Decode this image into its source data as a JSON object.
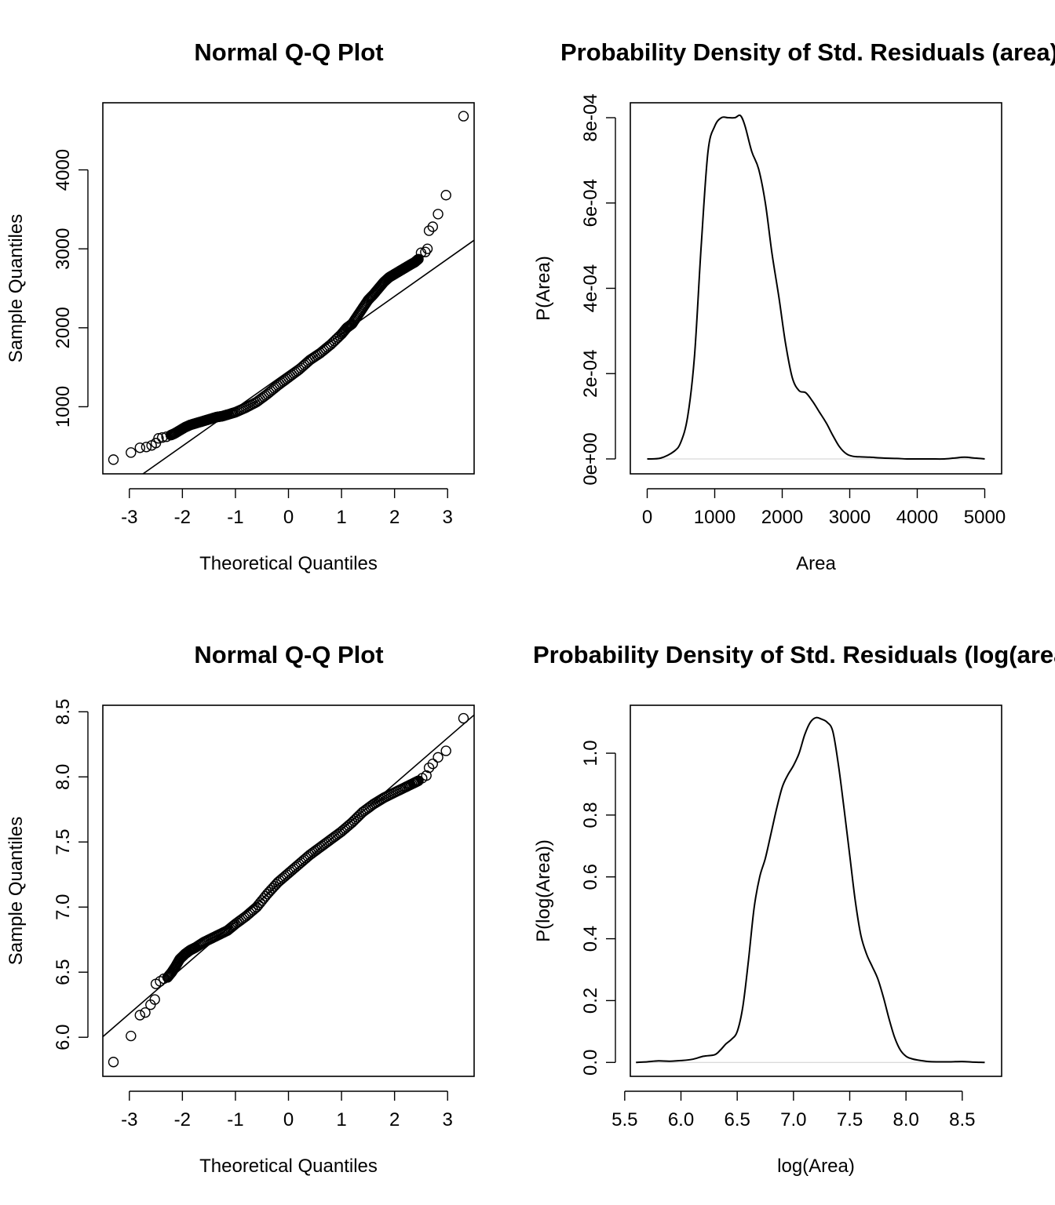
{
  "chart_data": [
    {
      "type": "scatter",
      "title": "Normal Q-Q Plot",
      "xlabel": "Theoretical Quantiles",
      "ylabel": "Sample Quantiles",
      "xlim": [
        -3.5,
        3.5
      ],
      "ylim": [
        150,
        4850
      ],
      "xticks": [
        "-3",
        "-2",
        "-1",
        "0",
        "1",
        "2",
        "3"
      ],
      "yticks": [
        "1000",
        "2000",
        "3000",
        "4000"
      ],
      "grid": false,
      "reference_line": {
        "intercept": 1450,
        "slope": 474
      },
      "points": [
        [
          -3.3,
          330
        ],
        [
          -2.97,
          420
        ],
        [
          -2.8,
          480
        ],
        [
          -2.68,
          490
        ],
        [
          -2.58,
          510
        ],
        [
          -2.5,
          540
        ],
        [
          -2.45,
          600
        ],
        [
          -2.38,
          610
        ],
        [
          -2.3,
          620
        ],
        [
          -2.22,
          640
        ],
        [
          -2.15,
          660
        ],
        [
          -2.05,
          700
        ],
        [
          -1.95,
          740
        ],
        [
          -1.85,
          770
        ],
        [
          -1.75,
          790
        ],
        [
          -1.65,
          810
        ],
        [
          -1.55,
          830
        ],
        [
          -1.45,
          850
        ],
        [
          -1.35,
          870
        ],
        [
          -1.25,
          880
        ],
        [
          -1.15,
          900
        ],
        [
          -1.0,
          930
        ],
        [
          -0.8,
          990
        ],
        [
          -0.6,
          1060
        ],
        [
          -0.4,
          1160
        ],
        [
          -0.2,
          1270
        ],
        [
          0.0,
          1370
        ],
        [
          0.2,
          1470
        ],
        [
          0.4,
          1590
        ],
        [
          0.6,
          1680
        ],
        [
          0.8,
          1790
        ],
        [
          1.0,
          1920
        ],
        [
          1.1,
          2000
        ],
        [
          1.2,
          2050
        ],
        [
          1.3,
          2150
        ],
        [
          1.4,
          2250
        ],
        [
          1.5,
          2350
        ],
        [
          1.6,
          2420
        ],
        [
          1.7,
          2500
        ],
        [
          1.8,
          2580
        ],
        [
          1.9,
          2640
        ],
        [
          2.0,
          2680
        ],
        [
          2.1,
          2720
        ],
        [
          2.2,
          2760
        ],
        [
          2.3,
          2800
        ],
        [
          2.38,
          2830
        ],
        [
          2.45,
          2870
        ],
        [
          2.5,
          2950
        ],
        [
          2.58,
          2960
        ],
        [
          2.62,
          3000
        ],
        [
          2.65,
          3230
        ],
        [
          2.72,
          3280
        ],
        [
          2.82,
          3440
        ],
        [
          2.97,
          3680
        ],
        [
          3.3,
          4680
        ]
      ]
    },
    {
      "type": "line",
      "title": "Probability Density of Std. Residuals (area)",
      "xlabel": "Area",
      "ylabel": "P(Area)",
      "xlim": [
        -250,
        5250
      ],
      "ylim": [
        -3.5e-05,
        0.000835
      ],
      "xticks": [
        "0",
        "1000",
        "2000",
        "3000",
        "4000",
        "5000"
      ],
      "yticks": [
        "0e+00",
        "2e-04",
        "4e-04",
        "6e-04",
        "8e-04"
      ],
      "grid": false,
      "x": [
        0,
        200,
        400,
        500,
        600,
        700,
        800,
        900,
        1000,
        1100,
        1200,
        1300,
        1380,
        1450,
        1550,
        1650,
        1750,
        1850,
        1950,
        2050,
        2150,
        2250,
        2350,
        2450,
        2550,
        2650,
        2750,
        2850,
        2950,
        3050,
        3150,
        3300,
        3500,
        3700,
        3850,
        4000,
        4200,
        4400,
        4550,
        4700,
        4850,
        5000
      ],
      "y": [
        0,
        2e-06,
        1.8e-05,
        4e-05,
        0.0001,
        0.00024,
        0.0005,
        0.00072,
        0.00078,
        0.0008,
        0.0008,
        0.0008,
        0.000805,
        0.00078,
        0.00072,
        0.00068,
        0.0006,
        0.00048,
        0.00038,
        0.00027,
        0.00019,
        0.00016,
        0.000155,
        0.000135,
        0.00011,
        8.5e-05,
        5.5e-05,
        2.8e-05,
        1.2e-05,
        6e-06,
        5e-06,
        4e-06,
        2e-06,
        1e-06,
        0,
        0,
        0,
        0,
        2e-06,
        4e-06,
        2e-06,
        0
      ]
    },
    {
      "type": "scatter",
      "title": "Normal Q-Q Plot",
      "xlabel": "Theoretical Quantiles",
      "ylabel": "Sample Quantiles",
      "xlim": [
        -3.5,
        3.5
      ],
      "ylim": [
        5.7,
        8.55
      ],
      "xticks": [
        "-3",
        "-2",
        "-1",
        "0",
        "1",
        "2",
        "3"
      ],
      "yticks": [
        "6.0",
        "6.5",
        "7.0",
        "7.5",
        "8.0",
        "8.5"
      ],
      "grid": false,
      "reference_line": {
        "intercept": 7.24,
        "slope": 0.353
      },
      "points": [
        [
          -3.3,
          5.81
        ],
        [
          -2.97,
          6.01
        ],
        [
          -2.8,
          6.17
        ],
        [
          -2.7,
          6.19
        ],
        [
          -2.6,
          6.25
        ],
        [
          -2.52,
          6.29
        ],
        [
          -2.5,
          6.41
        ],
        [
          -2.42,
          6.43
        ],
        [
          -2.35,
          6.45
        ],
        [
          -2.28,
          6.46
        ],
        [
          -2.2,
          6.5
        ],
        [
          -2.12,
          6.55
        ],
        [
          -2.05,
          6.6
        ],
        [
          -1.95,
          6.64
        ],
        [
          -1.85,
          6.67
        ],
        [
          -1.75,
          6.69
        ],
        [
          -1.6,
          6.73
        ],
        [
          -1.45,
          6.76
        ],
        [
          -1.3,
          6.79
        ],
        [
          -1.15,
          6.82
        ],
        [
          -1.0,
          6.87
        ],
        [
          -0.8,
          6.93
        ],
        [
          -0.6,
          7.0
        ],
        [
          -0.4,
          7.1
        ],
        [
          -0.2,
          7.19
        ],
        [
          0.0,
          7.26
        ],
        [
          0.2,
          7.33
        ],
        [
          0.4,
          7.4
        ],
        [
          0.6,
          7.46
        ],
        [
          0.8,
          7.52
        ],
        [
          1.0,
          7.58
        ],
        [
          1.2,
          7.65
        ],
        [
          1.4,
          7.73
        ],
        [
          1.6,
          7.79
        ],
        [
          1.8,
          7.84
        ],
        [
          2.0,
          7.88
        ],
        [
          2.2,
          7.92
        ],
        [
          2.35,
          7.95
        ],
        [
          2.45,
          7.97
        ],
        [
          2.52,
          7.99
        ],
        [
          2.6,
          8.01
        ],
        [
          2.65,
          8.07
        ],
        [
          2.72,
          8.1
        ],
        [
          2.82,
          8.15
        ],
        [
          2.97,
          8.2
        ],
        [
          3.3,
          8.45
        ]
      ]
    },
    {
      "type": "line",
      "title": "Probability Density of Std. Residuals (log(area))",
      "xlabel": "log(Area)",
      "ylabel": "P(log(Area))",
      "xlim": [
        5.55,
        8.85
      ],
      "ylim": [
        -0.045,
        1.155
      ],
      "xticks": [
        "5.5",
        "6.0",
        "6.5",
        "7.0",
        "7.5",
        "8.0",
        "8.5"
      ],
      "yticks": [
        "0.0",
        "0.2",
        "0.4",
        "0.6",
        "0.8",
        "1.0"
      ],
      "grid": false,
      "x": [
        5.6,
        5.7,
        5.8,
        5.9,
        6.0,
        6.1,
        6.2,
        6.3,
        6.35,
        6.4,
        6.45,
        6.5,
        6.55,
        6.6,
        6.65,
        6.7,
        6.75,
        6.8,
        6.85,
        6.9,
        6.95,
        7.0,
        7.05,
        7.1,
        7.15,
        7.2,
        7.25,
        7.3,
        7.35,
        7.4,
        7.45,
        7.5,
        7.55,
        7.6,
        7.65,
        7.7,
        7.75,
        7.8,
        7.85,
        7.9,
        7.95,
        8.0,
        8.05,
        8.1,
        8.2,
        8.3,
        8.4,
        8.5,
        8.6,
        8.7
      ],
      "y": [
        0.0,
        0.002,
        0.005,
        0.004,
        0.006,
        0.01,
        0.02,
        0.025,
        0.04,
        0.06,
        0.075,
        0.1,
        0.18,
        0.33,
        0.5,
        0.6,
        0.66,
        0.74,
        0.82,
        0.89,
        0.93,
        0.96,
        1.0,
        1.06,
        1.1,
        1.115,
        1.11,
        1.1,
        1.07,
        0.96,
        0.82,
        0.67,
        0.52,
        0.41,
        0.35,
        0.31,
        0.27,
        0.21,
        0.14,
        0.08,
        0.04,
        0.02,
        0.012,
        0.008,
        0.003,
        0.002,
        0.002,
        0.003,
        0.001,
        0.0
      ]
    }
  ]
}
